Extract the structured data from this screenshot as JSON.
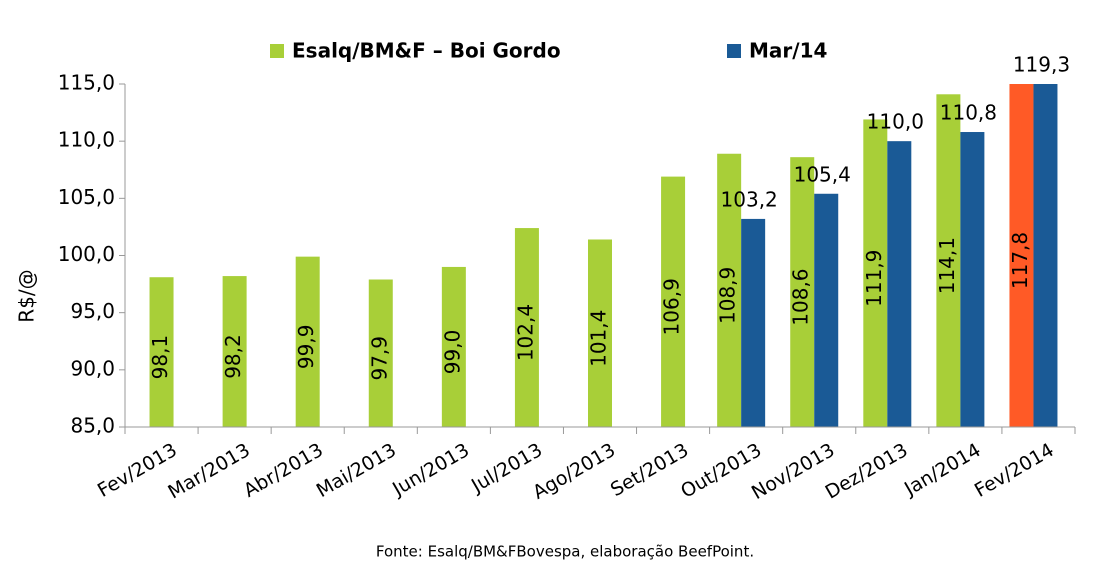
{
  "chart_data": {
    "type": "bar",
    "y_label": "R$/@",
    "source": "Fonte: Esalq/BM&FBovespa, elaboração BeefPoint.",
    "categories": [
      "Fev/2013",
      "Mar/2013",
      "Abr/2013",
      "Mai/2013",
      "Jun/2013",
      "Jul/2013",
      "Ago/2013",
      "Set/2013",
      "Out/2013",
      "Nov/2013",
      "Dez/2013",
      "Jan/2014",
      "Fev/2014"
    ],
    "series": [
      {
        "name": "Esalq/BM&F – Boi Gordo",
        "color": "#a8cf38",
        "colors": [
          "#a8cf38",
          "#a8cf38",
          "#a8cf38",
          "#a8cf38",
          "#a8cf38",
          "#a8cf38",
          "#a8cf38",
          "#a8cf38",
          "#a8cf38",
          "#a8cf38",
          "#a8cf38",
          "#a8cf38",
          "#ff5a26"
        ],
        "values": [
          98.1,
          98.2,
          99.9,
          97.9,
          99.0,
          102.4,
          101.4,
          106.9,
          108.9,
          108.6,
          111.9,
          114.1,
          117.8
        ],
        "value_labels": [
          "98,1",
          "98,2",
          "99,9",
          "97,9",
          "99,0",
          "102,4",
          "101,4",
          "106,9",
          "108,9",
          "108,6",
          "111,9",
          "114,1",
          "117,8"
        ]
      },
      {
        "name": "Mar/14",
        "color": "#1a5a96",
        "values": [
          null,
          null,
          null,
          null,
          null,
          null,
          null,
          null,
          103.2,
          105.4,
          110.0,
          110.8,
          119.3
        ],
        "value_labels": [
          null,
          null,
          null,
          null,
          null,
          null,
          null,
          null,
          "103,2",
          "105,4",
          "110,0",
          "110,8",
          "119,3"
        ]
      }
    ],
    "ylim": [
      85,
      115
    ],
    "yticks": [
      {
        "value": 85,
        "label": "85,0"
      },
      {
        "value": 90,
        "label": "90,0"
      },
      {
        "value": 95,
        "label": "95,0"
      },
      {
        "value": 100,
        "label": "100,0"
      },
      {
        "value": 105,
        "label": "105,0"
      },
      {
        "value": 110,
        "label": "110,0"
      },
      {
        "value": 115,
        "label": "115,0"
      }
    ],
    "grid": false
  }
}
